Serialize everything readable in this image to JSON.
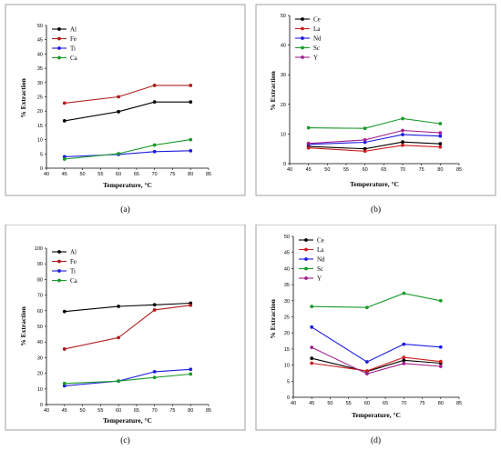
{
  "captions": [
    "(a)",
    "(b)",
    "(c)",
    "(d)"
  ],
  "chart_data": [
    {
      "type": "line",
      "xlabel": "Temperature, °C",
      "ylabel": "% Extraction",
      "xlim": [
        40,
        85
      ],
      "ylim": [
        0,
        50
      ],
      "xticks": [
        40,
        45,
        50,
        55,
        60,
        65,
        70,
        75,
        80,
        85
      ],
      "yticks": [
        0,
        5,
        10,
        15,
        20,
        25,
        30,
        35,
        40,
        45,
        50
      ],
      "legend_position": "top-left",
      "x": [
        45,
        60,
        70,
        80
      ],
      "series": [
        {
          "name": "Al",
          "color": "#000000",
          "values": [
            16.6,
            19.8,
            23.2,
            23.2
          ]
        },
        {
          "name": "Fe",
          "color": "#b01c1c",
          "values": [
            22.8,
            25.0,
            29.0,
            29.0
          ]
        },
        {
          "name": "Ti",
          "color": "#1c1ce0",
          "values": [
            4.0,
            4.8,
            5.8,
            6.1
          ]
        },
        {
          "name": "Ca",
          "color": "#1a9a2a",
          "values": [
            3.2,
            5.1,
            8.1,
            10.0
          ]
        }
      ]
    },
    {
      "type": "line",
      "xlabel": "Temperature, °C",
      "ylabel": "% Extraction",
      "xlim": [
        40,
        85
      ],
      "ylim": [
        0,
        50
      ],
      "xticks": [
        40,
        45,
        50,
        55,
        60,
        65,
        70,
        75,
        80,
        85
      ],
      "yticks": [
        0,
        10,
        20,
        30,
        40,
        50
      ],
      "legend_position": "top-left",
      "x": [
        45,
        60,
        70,
        80
      ],
      "series": [
        {
          "name": "Ce",
          "color": "#000000",
          "values": [
            5.8,
            5.0,
            7.3,
            6.7
          ]
        },
        {
          "name": "La",
          "color": "#cc1f1f",
          "values": [
            5.3,
            4.2,
            6.2,
            5.6
          ]
        },
        {
          "name": "Nd",
          "color": "#1c1ce0",
          "values": [
            6.5,
            7.2,
            9.8,
            9.3
          ]
        },
        {
          "name": "Sc",
          "color": "#1a9a2a",
          "values": [
            12.1,
            11.9,
            15.2,
            13.5
          ]
        },
        {
          "name": "Y",
          "color": "#a0208f",
          "values": [
            6.8,
            8.0,
            11.2,
            10.4
          ]
        }
      ]
    },
    {
      "type": "line",
      "xlabel": "Temperature, °C",
      "ylabel": "% Extraction",
      "xlim": [
        40,
        85
      ],
      "ylim": [
        0,
        100
      ],
      "xticks": [
        40,
        45,
        50,
        55,
        60,
        65,
        70,
        75,
        80,
        85
      ],
      "yticks": [
        0,
        10,
        20,
        30,
        40,
        50,
        60,
        70,
        80,
        90,
        100
      ],
      "legend_position": "top-left",
      "x": [
        45,
        60,
        70,
        80
      ],
      "series": [
        {
          "name": "Al",
          "color": "#000000",
          "values": [
            59.5,
            62.8,
            63.8,
            64.8
          ]
        },
        {
          "name": "Fe",
          "color": "#b01c1c",
          "values": [
            35.5,
            42.8,
            60.5,
            63.5
          ]
        },
        {
          "name": "Ti",
          "color": "#1c1ce0",
          "values": [
            12.0,
            15.0,
            21.0,
            22.5
          ]
        },
        {
          "name": "Ca",
          "color": "#1a9a2a",
          "values": [
            13.5,
            15.0,
            17.3,
            19.5
          ]
        }
      ]
    },
    {
      "type": "line",
      "xlabel": "Temperature, °C",
      "ylabel": "% Extraction",
      "xlim": [
        40,
        85
      ],
      "ylim": [
        0,
        50
      ],
      "xticks": [
        40,
        45,
        50,
        55,
        60,
        65,
        70,
        75,
        80,
        85
      ],
      "yticks": [
        0,
        5,
        10,
        15,
        20,
        25,
        30,
        35,
        40,
        45,
        50
      ],
      "legend_position": "top-left",
      "x": [
        45,
        60,
        70,
        80
      ],
      "series": [
        {
          "name": "Ce",
          "color": "#000000",
          "values": [
            12.1,
            8.0,
            11.5,
            10.6
          ]
        },
        {
          "name": "La",
          "color": "#cc1f1f",
          "values": [
            10.6,
            8.2,
            12.4,
            11.1
          ]
        },
        {
          "name": "Nd",
          "color": "#1c1ce0",
          "values": [
            21.8,
            11.0,
            16.5,
            15.6
          ]
        },
        {
          "name": "Sc",
          "color": "#1a9a2a",
          "values": [
            28.2,
            27.9,
            32.3,
            30.0
          ]
        },
        {
          "name": "Y",
          "color": "#a0208f",
          "values": [
            15.5,
            7.3,
            10.5,
            9.6
          ]
        }
      ]
    }
  ]
}
